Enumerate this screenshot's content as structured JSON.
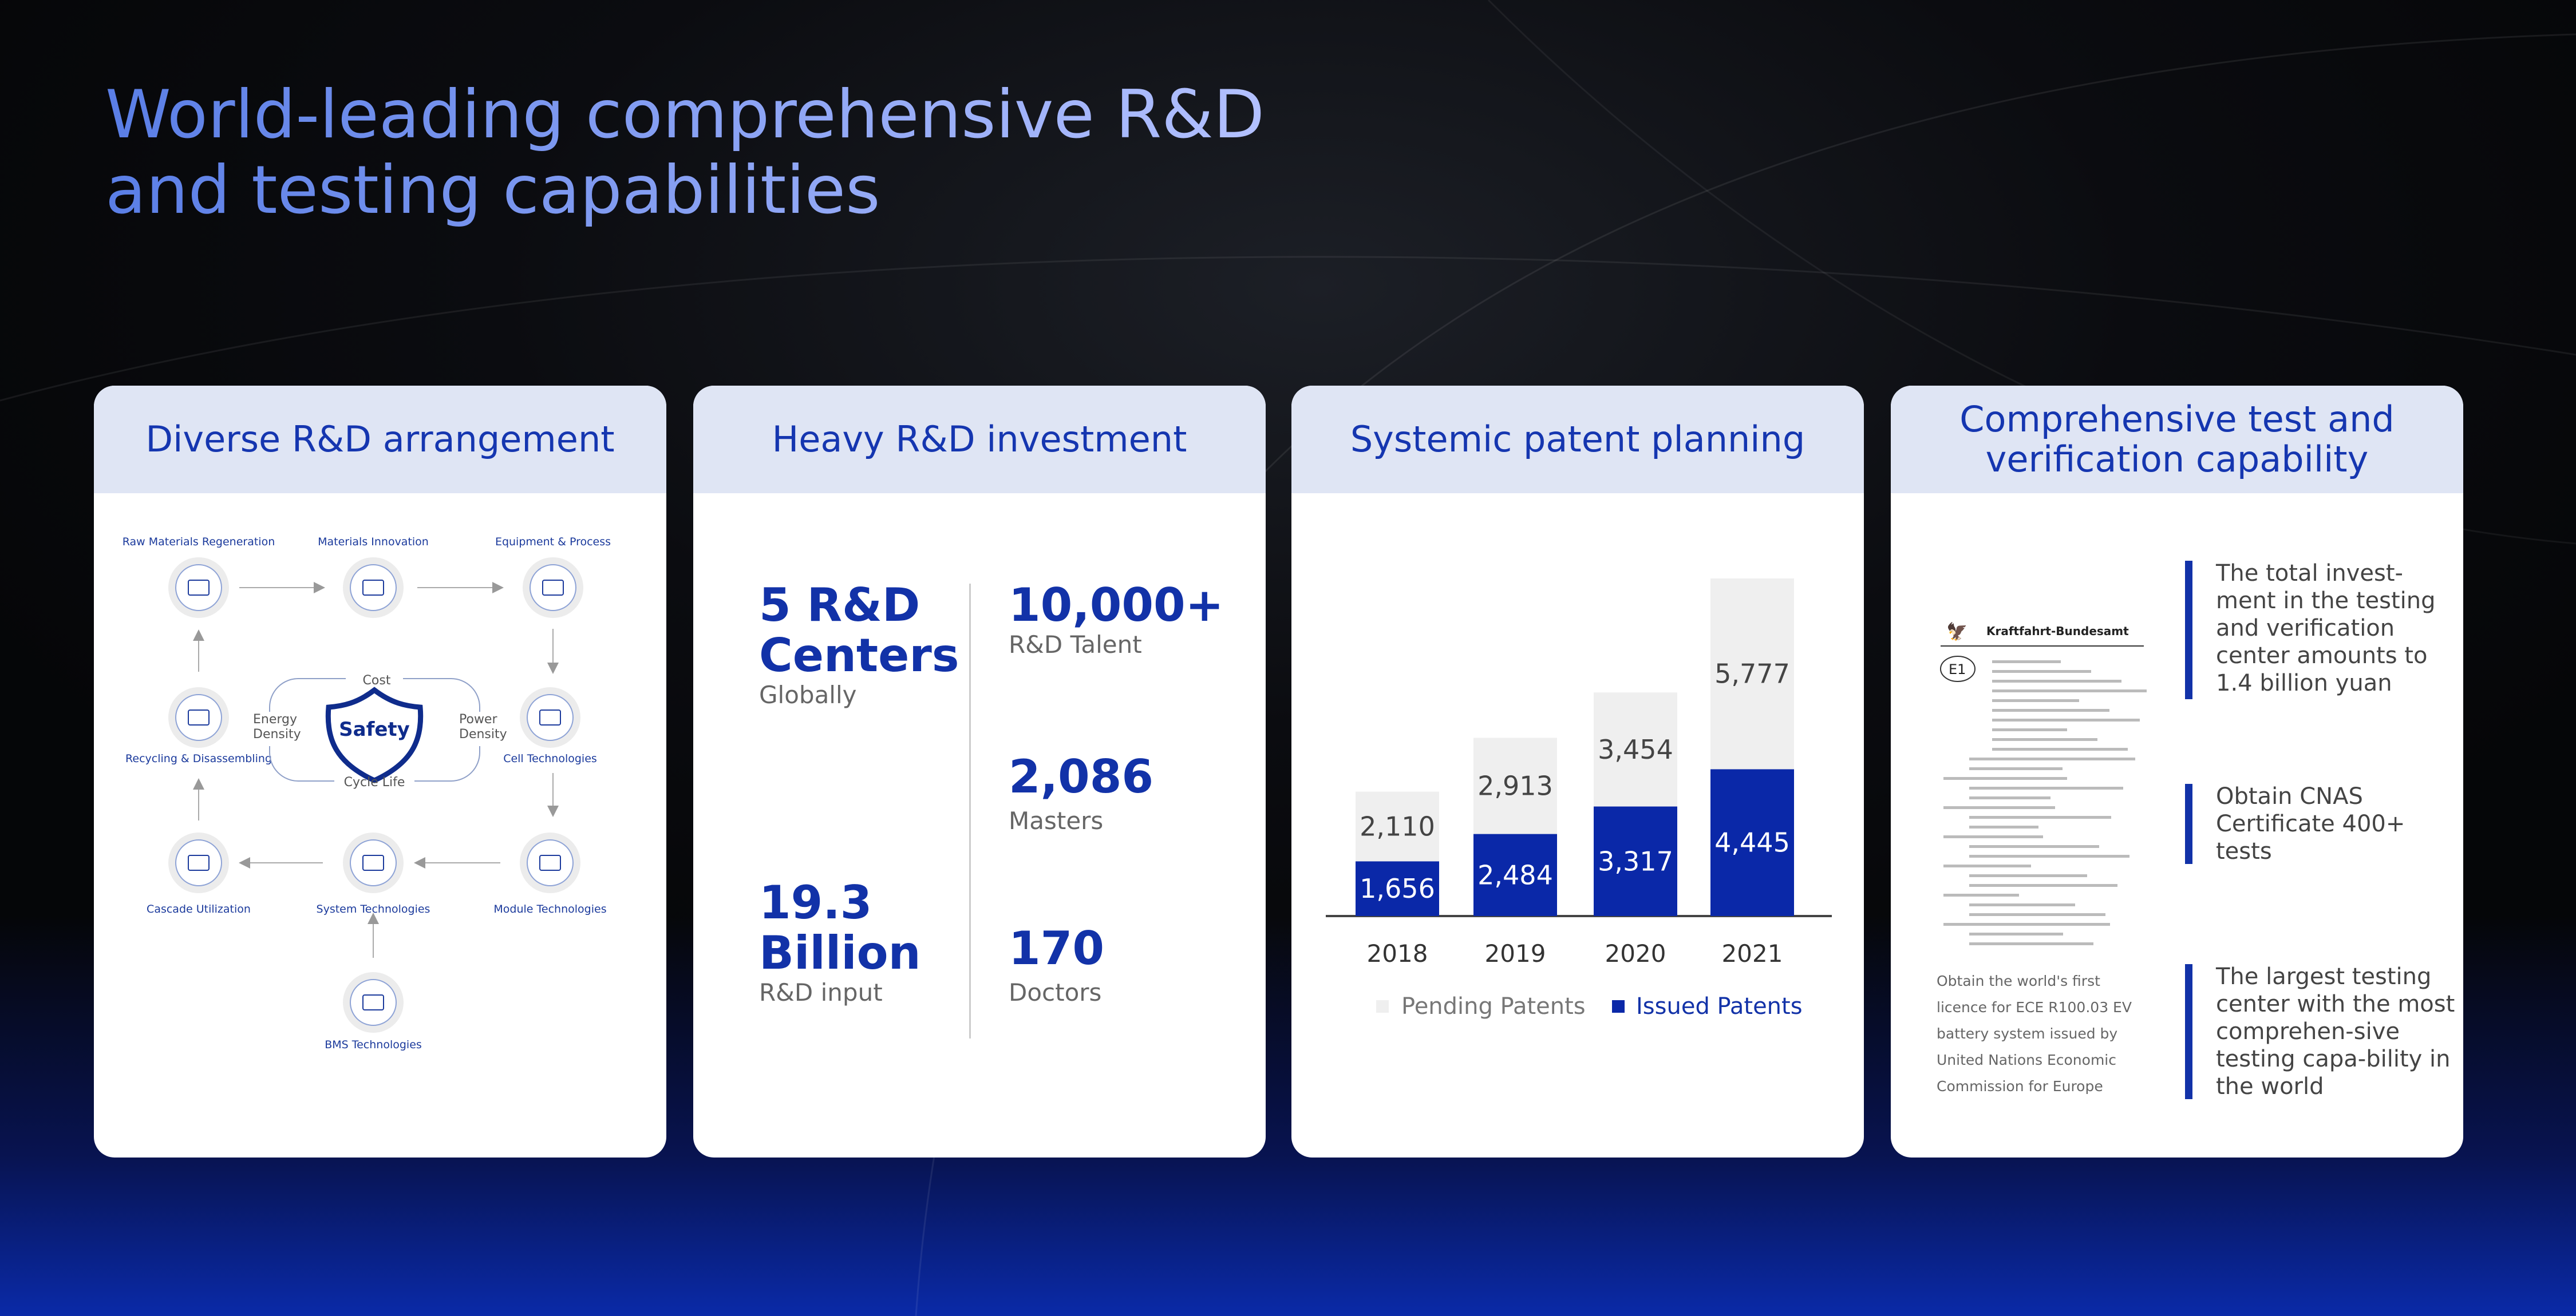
{
  "title": {
    "line1": "World-leading comprehensive R&D",
    "line2": "and testing capabilities"
  },
  "cards": [
    {
      "header": "Diverse R&D arrangement",
      "nodes": [
        "Raw Materials Regeneration",
        "Materials Innovation",
        "Equipment & Process",
        "Recycling & Disassembling",
        "Cell Technologies",
        "Cascade Utilization",
        "System Technologies",
        "Module Technologies",
        "BMS Technologies"
      ],
      "center": {
        "core": "Safety",
        "top": "Cost",
        "left": "Energy Density",
        "right": "Power Density",
        "bottom": "Cycle Life"
      }
    },
    {
      "header": "Heavy R&D investment",
      "stats": [
        {
          "value_line1": "5 R&D",
          "value_line2": "Centers",
          "label": "Globally"
        },
        {
          "value": "10,000+",
          "label": "R&D Talent"
        },
        {
          "value": "2,086",
          "label": "Masters"
        },
        {
          "value_line1": "19.3",
          "value_line2": "Billion",
          "label": "R&D input"
        },
        {
          "value": "170",
          "label": "Doctors"
        }
      ]
    },
    {
      "header": "Systemic patent planning"
    },
    {
      "header_line1": "Comprehensive test and",
      "header_line2": "verification capability",
      "document": {
        "authority": "Kraftfahrt-Bundesamt",
        "mark": "E1"
      },
      "caption": "Obtain the world's first licence for ECE R100.03 EV battery system issued by United Nations Economic Commission for Europe",
      "items": [
        "The total invest-ment in the testing and verification center amounts to 1.4 billion yuan",
        "Obtain CNAS Certificate 400+ tests",
        "The largest testing center with the most comprehen-sive testing capa-bility in the world"
      ]
    }
  ],
  "chart_data": {
    "type": "bar",
    "stacked": true,
    "categories": [
      "2018",
      "2019",
      "2020",
      "2021"
    ],
    "series": [
      {
        "name": "Issued Patents",
        "values": [
          1656,
          2484,
          3317,
          4445
        ],
        "color": "#0a28a8"
      },
      {
        "name": "Pending Patents",
        "values": [
          2110,
          2913,
          3454,
          5777
        ],
        "color": "#efefef"
      }
    ],
    "legend_placement": "bottom",
    "grid": false
  },
  "colors": {
    "accent": "#1232a8",
    "header_bg": "#dfe5f4"
  }
}
